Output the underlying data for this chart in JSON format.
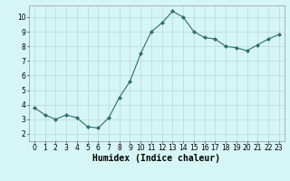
{
  "x": [
    0,
    1,
    2,
    3,
    4,
    5,
    6,
    7,
    8,
    9,
    10,
    11,
    12,
    13,
    14,
    15,
    16,
    17,
    18,
    19,
    20,
    21,
    22,
    23
  ],
  "y": [
    3.8,
    3.3,
    3.0,
    3.3,
    3.1,
    2.5,
    2.4,
    3.1,
    4.5,
    5.6,
    7.5,
    9.0,
    9.6,
    10.4,
    10.0,
    9.0,
    8.6,
    8.5,
    8.0,
    7.9,
    7.7,
    8.1,
    8.5,
    8.8
  ],
  "line_color": "#2e6e6e",
  "marker": "D",
  "marker_size": 2,
  "bg_color": "#d6f5f5",
  "grid_color": "#b8d8d8",
  "xlabel": "Humidex (Indice chaleur)",
  "xlim": [
    -0.5,
    23.5
  ],
  "ylim": [
    1.5,
    10.8
  ],
  "yticks": [
    2,
    3,
    4,
    5,
    6,
    7,
    8,
    9,
    10
  ],
  "xticks": [
    0,
    1,
    2,
    3,
    4,
    5,
    6,
    7,
    8,
    9,
    10,
    11,
    12,
    13,
    14,
    15,
    16,
    17,
    18,
    19,
    20,
    21,
    22,
    23
  ],
  "tick_label_fontsize": 5.5,
  "xlabel_fontsize": 7
}
